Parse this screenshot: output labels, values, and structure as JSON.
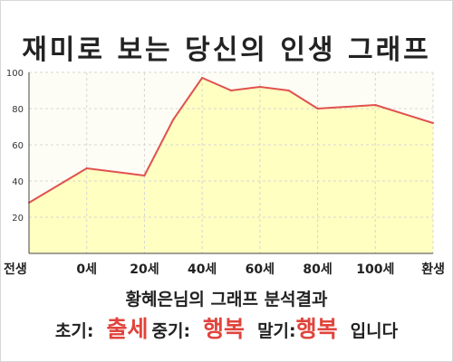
{
  "title": "재미로 보는 당신의 인생 그래프",
  "summary": {
    "heading": "황혜은님의 그래프 분석결과",
    "early_label": "초기:",
    "early_value": "출세",
    "mid_label": "중기:",
    "mid_value": "행복",
    "late_label": "말기:",
    "late_value": "행복",
    "ending": "입니다"
  },
  "colors": {
    "fill": "#ffffc2",
    "line": "#e0524f",
    "grid": "#d6d6d6",
    "accent": "#e0443c"
  },
  "chart_data": {
    "type": "area",
    "title": "재미로 보는 당신의 인생 그래프",
    "x_ticks": [
      "전생",
      "0세",
      "20세",
      "40세",
      "60세",
      "80세",
      "100세",
      "환생"
    ],
    "x": [
      -20,
      0,
      20,
      40,
      60,
      80,
      100,
      120
    ],
    "ylim": [
      0,
      100
    ],
    "y_ticks": [
      20,
      40,
      60,
      80,
      100
    ],
    "grid": true,
    "series": [
      {
        "points": [
          {
            "x": -20,
            "y": 28
          },
          {
            "x": 0,
            "y": 47
          },
          {
            "x": 20,
            "y": 43
          },
          {
            "x": 30,
            "y": 74
          },
          {
            "x": 40,
            "y": 97
          },
          {
            "x": 50,
            "y": 90
          },
          {
            "x": 60,
            "y": 92
          },
          {
            "x": 70,
            "y": 90
          },
          {
            "x": 80,
            "y": 80
          },
          {
            "x": 100,
            "y": 82
          },
          {
            "x": 120,
            "y": 72
          }
        ]
      }
    ]
  }
}
